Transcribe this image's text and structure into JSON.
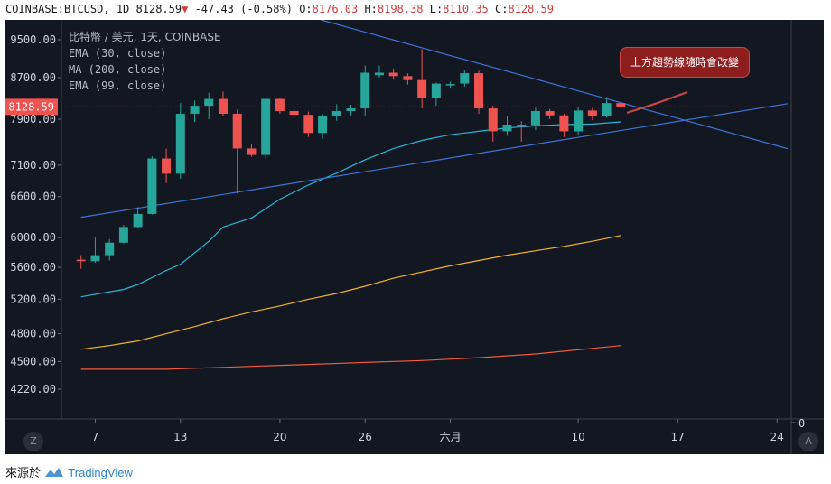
{
  "header": {
    "symbol": "COINBASE:BTCUSD",
    "interval": "1D",
    "last": "8128.59",
    "change_arrow": "▼",
    "change": "-47.43",
    "change_pct": "(-0.58%)",
    "o_label": "O:",
    "o": "8176.03",
    "h_label": "H:",
    "h": "8198.38",
    "l_label": "L:",
    "l": "8110.35",
    "c_label": "C:",
    "c": "8128.59"
  },
  "legend": {
    "title": "比特幣 / 美元, 1天, COINBASE",
    "ema30": "EMA (30, close)",
    "ma200": "MA (200, close)",
    "ema99": "EMA (99, close)"
  },
  "annotation": "上方趨勢線隨時會改變",
  "footer": {
    "prefix": "來源於",
    "brand": "TradingView"
  },
  "controls": {
    "zoom_label": "Z",
    "auto_label": "A"
  },
  "colors": {
    "background": "#131722",
    "up": "#26a69a",
    "down": "#ef5350",
    "ema30": "#27b6d6",
    "ma200": "#ef5b3c",
    "ema99": "#f0b428",
    "trendline": "#3e74d6",
    "price_label_bg": "#ef5350"
  },
  "chart_data": {
    "type": "candlestick",
    "y_scale": "log",
    "y_ticks": [
      4220,
      4500,
      4800,
      5200,
      5600,
      6000,
      6600,
      7100,
      7900,
      8700,
      9500
    ],
    "y_tick_labels": [
      "4220.00",
      "4500.00",
      "4800.00",
      "5200.00",
      "5600.00",
      "6000.00",
      "6600.00",
      "7100.00",
      "7900.00",
      "8700.00",
      "9500.00"
    ],
    "x_tick_labels": [
      "7",
      "13",
      "20",
      "26",
      "六月",
      "10",
      "17",
      "24"
    ],
    "x_tick_days": [
      7,
      13,
      20,
      26,
      32,
      41,
      48,
      55
    ],
    "last_price": 8128.59,
    "last_price_label": "8128.59",
    "volume_axis_label": "0",
    "candles": [
      {
        "d": 6,
        "o": 5700,
        "h": 5760,
        "l": 5580,
        "c": 5680
      },
      {
        "d": 7,
        "o": 5680,
        "h": 6000,
        "l": 5660,
        "c": 5760
      },
      {
        "d": 8,
        "o": 5760,
        "h": 5980,
        "l": 5690,
        "c": 5930
      },
      {
        "d": 9,
        "o": 5930,
        "h": 6180,
        "l": 5920,
        "c": 6150
      },
      {
        "d": 10,
        "o": 6150,
        "h": 6440,
        "l": 6140,
        "c": 6340
      },
      {
        "d": 11,
        "o": 6340,
        "h": 7250,
        "l": 6330,
        "c": 7210
      },
      {
        "d": 12,
        "o": 7210,
        "h": 7380,
        "l": 6810,
        "c": 6960
      },
      {
        "d": 13,
        "o": 6960,
        "h": 8200,
        "l": 6880,
        "c": 8000
      },
      {
        "d": 14,
        "o": 8000,
        "h": 8250,
        "l": 7850,
        "c": 8150
      },
      {
        "d": 15,
        "o": 8150,
        "h": 8400,
        "l": 7900,
        "c": 8280
      },
      {
        "d": 16,
        "o": 8280,
        "h": 8420,
        "l": 7950,
        "c": 8000
      },
      {
        "d": 17,
        "o": 8000,
        "h": 8080,
        "l": 6650,
        "c": 7380
      },
      {
        "d": 18,
        "o": 7380,
        "h": 7460,
        "l": 7240,
        "c": 7270
      },
      {
        "d": 19,
        "o": 7270,
        "h": 8280,
        "l": 7200,
        "c": 8280
      },
      {
        "d": 20,
        "o": 8280,
        "h": 8290,
        "l": 8000,
        "c": 8050
      },
      {
        "d": 21,
        "o": 8050,
        "h": 8120,
        "l": 7920,
        "c": 7980
      },
      {
        "d": 22,
        "o": 7980,
        "h": 8040,
        "l": 7580,
        "c": 7650
      },
      {
        "d": 23,
        "o": 7650,
        "h": 8000,
        "l": 7550,
        "c": 7950
      },
      {
        "d": 24,
        "o": 7950,
        "h": 8180,
        "l": 7870,
        "c": 8050
      },
      {
        "d": 25,
        "o": 8050,
        "h": 8170,
        "l": 7970,
        "c": 8100
      },
      {
        "d": 26,
        "o": 8100,
        "h": 8950,
        "l": 7950,
        "c": 8800
      },
      {
        "d": 27,
        "o": 8750,
        "h": 8950,
        "l": 8700,
        "c": 8800
      },
      {
        "d": 28,
        "o": 8800,
        "h": 8890,
        "l": 8660,
        "c": 8730
      },
      {
        "d": 29,
        "o": 8730,
        "h": 8790,
        "l": 8560,
        "c": 8650
      },
      {
        "d": 30,
        "o": 8650,
        "h": 9300,
        "l": 8100,
        "c": 8300
      },
      {
        "d": 31,
        "o": 8300,
        "h": 8600,
        "l": 8150,
        "c": 8580
      },
      {
        "d": 32,
        "o": 8560,
        "h": 8620,
        "l": 8480,
        "c": 8570
      },
      {
        "d": 33,
        "o": 8580,
        "h": 8850,
        "l": 8520,
        "c": 8790
      },
      {
        "d": 34,
        "o": 8790,
        "h": 8840,
        "l": 8000,
        "c": 8100
      },
      {
        "d": 35,
        "o": 8100,
        "h": 8150,
        "l": 7500,
        "c": 7680
      },
      {
        "d": 36,
        "o": 7680,
        "h": 7950,
        "l": 7600,
        "c": 7800
      },
      {
        "d": 37,
        "o": 7800,
        "h": 7860,
        "l": 7500,
        "c": 7790
      },
      {
        "d": 38,
        "o": 7790,
        "h": 8110,
        "l": 7700,
        "c": 8050
      },
      {
        "d": 39,
        "o": 8050,
        "h": 8090,
        "l": 7900,
        "c": 7970
      },
      {
        "d": 40,
        "o": 7970,
        "h": 8000,
        "l": 7580,
        "c": 7680
      },
      {
        "d": 41,
        "o": 7680,
        "h": 8120,
        "l": 7600,
        "c": 8060
      },
      {
        "d": 42,
        "o": 8060,
        "h": 8110,
        "l": 7880,
        "c": 7950
      },
      {
        "d": 43,
        "o": 7950,
        "h": 8320,
        "l": 7930,
        "c": 8200
      },
      {
        "d": 44,
        "o": 8200,
        "h": 8230,
        "l": 8100,
        "c": 8130
      }
    ],
    "ema30": [
      [
        6,
        5230
      ],
      [
        9,
        5320
      ],
      [
        10,
        5380
      ],
      [
        12,
        5560
      ],
      [
        13,
        5640
      ],
      [
        15,
        5950
      ],
      [
        16,
        6150
      ],
      [
        18,
        6280
      ],
      [
        20,
        6560
      ],
      [
        22,
        6780
      ],
      [
        24,
        6970
      ],
      [
        26,
        7190
      ],
      [
        28,
        7380
      ],
      [
        30,
        7520
      ],
      [
        32,
        7620
      ],
      [
        34,
        7680
      ],
      [
        36,
        7740
      ],
      [
        38,
        7780
      ],
      [
        40,
        7800
      ],
      [
        42,
        7810
      ],
      [
        44,
        7850
      ]
    ],
    "ema99": [
      [
        6,
        4630
      ],
      [
        8,
        4670
      ],
      [
        10,
        4720
      ],
      [
        12,
        4800
      ],
      [
        14,
        4880
      ],
      [
        16,
        4970
      ],
      [
        18,
        5050
      ],
      [
        20,
        5120
      ],
      [
        22,
        5200
      ],
      [
        24,
        5270
      ],
      [
        26,
        5360
      ],
      [
        28,
        5460
      ],
      [
        30,
        5540
      ],
      [
        32,
        5620
      ],
      [
        34,
        5690
      ],
      [
        36,
        5760
      ],
      [
        38,
        5820
      ],
      [
        40,
        5880
      ],
      [
        42,
        5950
      ],
      [
        44,
        6030
      ]
    ],
    "ma200": [
      [
        6,
        4420
      ],
      [
        12,
        4420
      ],
      [
        14,
        4430
      ],
      [
        16,
        4440
      ],
      [
        18,
        4450
      ],
      [
        20,
        4460
      ],
      [
        22,
        4470
      ],
      [
        26,
        4490
      ],
      [
        30,
        4510
      ],
      [
        34,
        4540
      ],
      [
        38,
        4580
      ],
      [
        42,
        4640
      ],
      [
        44,
        4670
      ]
    ],
    "trendlines": [
      {
        "name": "upper",
        "from": [
          18,
          10400
        ],
        "to": [
          56,
          7360
        ]
      },
      {
        "name": "lower",
        "from": [
          6,
          6290
        ],
        "to": [
          56,
          8200
        ]
      }
    ],
    "x_range": [
      5,
      56
    ]
  }
}
